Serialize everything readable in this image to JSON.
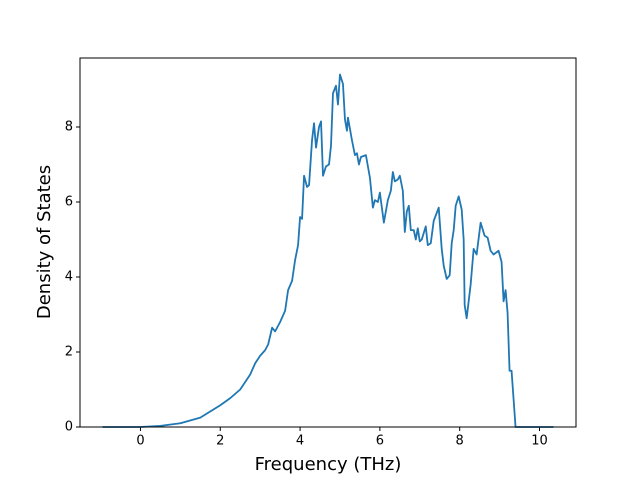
{
  "chart_data": {
    "type": "line",
    "x_label": "Frequency (THz)",
    "y_label": "Density of States",
    "x": [
      -0.95,
      0,
      0.5,
      1.0,
      1.5,
      2.0,
      2.25,
      2.5,
      2.75,
      2.875,
      3.0,
      3.125,
      3.2,
      3.3,
      3.375,
      3.5,
      3.625,
      3.7,
      3.8,
      3.875,
      3.95,
      4.0,
      4.05,
      4.1,
      4.175,
      4.225,
      4.3,
      4.35,
      4.4,
      4.475,
      4.525,
      4.575,
      4.65,
      4.725,
      4.775,
      4.825,
      4.9,
      4.95,
      5.0,
      5.075,
      5.125,
      5.175,
      5.2,
      5.3,
      5.375,
      5.425,
      5.475,
      5.525,
      5.65,
      5.75,
      5.825,
      5.875,
      5.95,
      6.0,
      6.1,
      6.2,
      6.275,
      6.325,
      6.375,
      6.45,
      6.5,
      6.575,
      6.625,
      6.675,
      6.725,
      6.775,
      6.85,
      6.9,
      6.95,
      7.0,
      7.05,
      7.15,
      7.2,
      7.275,
      7.35,
      7.475,
      7.55,
      7.6,
      7.675,
      7.75,
      7.8,
      7.85,
      7.9,
      7.975,
      8.05,
      8.1,
      8.125,
      8.175,
      8.275,
      8.35,
      8.425,
      8.525,
      8.625,
      8.7,
      8.775,
      8.85,
      8.975,
      9.05,
      9.1,
      9.15,
      9.2,
      9.25,
      9.3,
      9.4,
      10.35
    ],
    "values": [
      0,
      0,
      0.03,
      0.1,
      0.25,
      0.58,
      0.77,
      1.0,
      1.4,
      1.7,
      1.9,
      2.05,
      2.2,
      2.65,
      2.55,
      2.8,
      3.1,
      3.65,
      3.9,
      4.45,
      4.85,
      5.6,
      5.55,
      6.7,
      6.4,
      6.45,
      7.65,
      8.1,
      7.45,
      8.0,
      8.15,
      6.7,
      6.95,
      7.0,
      7.5,
      8.9,
      9.1,
      8.6,
      9.4,
      9.15,
      8.2,
      7.9,
      8.25,
      7.65,
      7.25,
      7.3,
      7.0,
      7.2,
      7.25,
      6.65,
      5.85,
      6.05,
      6.0,
      6.25,
      5.45,
      6.05,
      6.3,
      6.8,
      6.55,
      6.6,
      6.7,
      6.3,
      5.2,
      5.75,
      5.9,
      5.25,
      5.25,
      5.0,
      5.3,
      4.95,
      5.0,
      5.35,
      4.85,
      4.9,
      5.5,
      5.85,
      4.75,
      4.3,
      3.95,
      4.05,
      4.9,
      5.25,
      5.9,
      6.15,
      5.8,
      5.0,
      3.25,
      2.9,
      3.8,
      4.75,
      4.6,
      5.45,
      5.1,
      5.05,
      4.7,
      4.6,
      4.7,
      4.4,
      3.35,
      3.65,
      3.05,
      1.5,
      1.5,
      0,
      0
    ],
    "color": "#1f77b4",
    "xlim": [
      -1.515,
      10.915
    ],
    "xticks": [
      0,
      2,
      4,
      6,
      8,
      10
    ],
    "ylim": [
      0,
      9.84
    ],
    "yticks": [
      0,
      2,
      4,
      6,
      8
    ]
  }
}
